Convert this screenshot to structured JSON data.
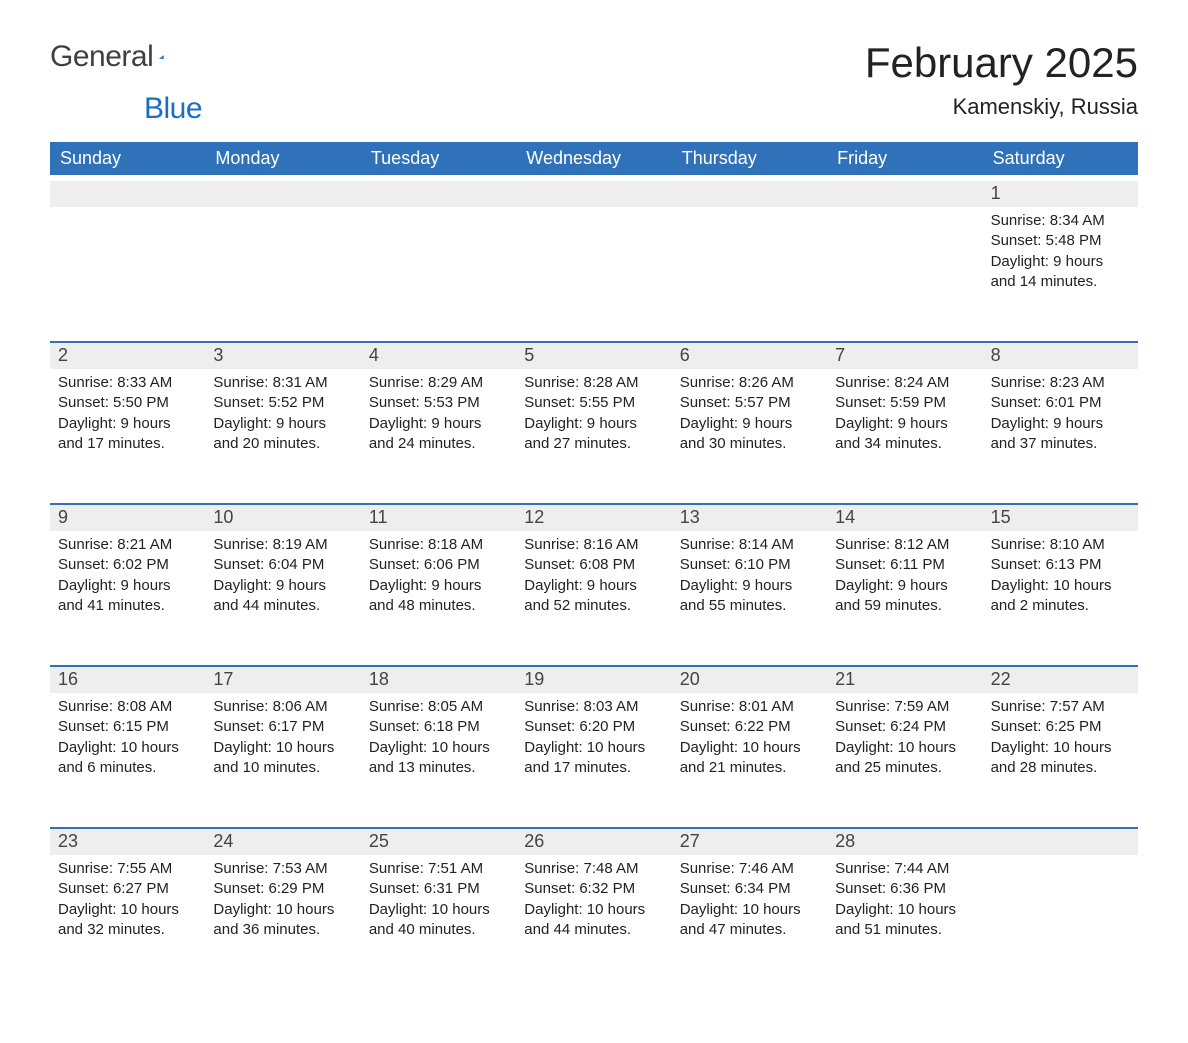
{
  "logo": {
    "word1": "General",
    "word2": "Blue",
    "sail_fill": "#1b6ec2"
  },
  "title": {
    "month_year": "February 2025",
    "location": "Kamenskiy, Russia"
  },
  "style": {
    "header_blue": "#2f72b9",
    "rule_blue": "#2f72b9",
    "row_grey": "#eeeeee",
    "background": "#ffffff",
    "weekday_text_color": "#ffffff",
    "body_text_color": "#222222",
    "daynum_text_color": "#444444",
    "month_title_fontsize": 42,
    "location_fontsize": 22,
    "weekday_fontsize": 18,
    "daynum_fontsize": 18,
    "body_fontsize": 15
  },
  "weekdays": [
    "Sunday",
    "Monday",
    "Tuesday",
    "Wednesday",
    "Thursday",
    "Friday",
    "Saturday"
  ],
  "weeks": [
    [
      {
        "day": "",
        "lines": []
      },
      {
        "day": "",
        "lines": []
      },
      {
        "day": "",
        "lines": []
      },
      {
        "day": "",
        "lines": []
      },
      {
        "day": "",
        "lines": []
      },
      {
        "day": "",
        "lines": []
      },
      {
        "day": "1",
        "lines": [
          "Sunrise: 8:34 AM",
          "Sunset: 5:48 PM",
          "Daylight: 9 hours",
          "and 14 minutes."
        ]
      }
    ],
    [
      {
        "day": "2",
        "lines": [
          "Sunrise: 8:33 AM",
          "Sunset: 5:50 PM",
          "Daylight: 9 hours",
          "and 17 minutes."
        ]
      },
      {
        "day": "3",
        "lines": [
          "Sunrise: 8:31 AM",
          "Sunset: 5:52 PM",
          "Daylight: 9 hours",
          "and 20 minutes."
        ]
      },
      {
        "day": "4",
        "lines": [
          "Sunrise: 8:29 AM",
          "Sunset: 5:53 PM",
          "Daylight: 9 hours",
          "and 24 minutes."
        ]
      },
      {
        "day": "5",
        "lines": [
          "Sunrise: 8:28 AM",
          "Sunset: 5:55 PM",
          "Daylight: 9 hours",
          "and 27 minutes."
        ]
      },
      {
        "day": "6",
        "lines": [
          "Sunrise: 8:26 AM",
          "Sunset: 5:57 PM",
          "Daylight: 9 hours",
          "and 30 minutes."
        ]
      },
      {
        "day": "7",
        "lines": [
          "Sunrise: 8:24 AM",
          "Sunset: 5:59 PM",
          "Daylight: 9 hours",
          "and 34 minutes."
        ]
      },
      {
        "day": "8",
        "lines": [
          "Sunrise: 8:23 AM",
          "Sunset: 6:01 PM",
          "Daylight: 9 hours",
          "and 37 minutes."
        ]
      }
    ],
    [
      {
        "day": "9",
        "lines": [
          "Sunrise: 8:21 AM",
          "Sunset: 6:02 PM",
          "Daylight: 9 hours",
          "and 41 minutes."
        ]
      },
      {
        "day": "10",
        "lines": [
          "Sunrise: 8:19 AM",
          "Sunset: 6:04 PM",
          "Daylight: 9 hours",
          "and 44 minutes."
        ]
      },
      {
        "day": "11",
        "lines": [
          "Sunrise: 8:18 AM",
          "Sunset: 6:06 PM",
          "Daylight: 9 hours",
          "and 48 minutes."
        ]
      },
      {
        "day": "12",
        "lines": [
          "Sunrise: 8:16 AM",
          "Sunset: 6:08 PM",
          "Daylight: 9 hours",
          "and 52 minutes."
        ]
      },
      {
        "day": "13",
        "lines": [
          "Sunrise: 8:14 AM",
          "Sunset: 6:10 PM",
          "Daylight: 9 hours",
          "and 55 minutes."
        ]
      },
      {
        "day": "14",
        "lines": [
          "Sunrise: 8:12 AM",
          "Sunset: 6:11 PM",
          "Daylight: 9 hours",
          "and 59 minutes."
        ]
      },
      {
        "day": "15",
        "lines": [
          "Sunrise: 8:10 AM",
          "Sunset: 6:13 PM",
          "Daylight: 10 hours",
          "and 2 minutes."
        ]
      }
    ],
    [
      {
        "day": "16",
        "lines": [
          "Sunrise: 8:08 AM",
          "Sunset: 6:15 PM",
          "Daylight: 10 hours",
          "and 6 minutes."
        ]
      },
      {
        "day": "17",
        "lines": [
          "Sunrise: 8:06 AM",
          "Sunset: 6:17 PM",
          "Daylight: 10 hours",
          "and 10 minutes."
        ]
      },
      {
        "day": "18",
        "lines": [
          "Sunrise: 8:05 AM",
          "Sunset: 6:18 PM",
          "Daylight: 10 hours",
          "and 13 minutes."
        ]
      },
      {
        "day": "19",
        "lines": [
          "Sunrise: 8:03 AM",
          "Sunset: 6:20 PM",
          "Daylight: 10 hours",
          "and 17 minutes."
        ]
      },
      {
        "day": "20",
        "lines": [
          "Sunrise: 8:01 AM",
          "Sunset: 6:22 PM",
          "Daylight: 10 hours",
          "and 21 minutes."
        ]
      },
      {
        "day": "21",
        "lines": [
          "Sunrise: 7:59 AM",
          "Sunset: 6:24 PM",
          "Daylight: 10 hours",
          "and 25 minutes."
        ]
      },
      {
        "day": "22",
        "lines": [
          "Sunrise: 7:57 AM",
          "Sunset: 6:25 PM",
          "Daylight: 10 hours",
          "and 28 minutes."
        ]
      }
    ],
    [
      {
        "day": "23",
        "lines": [
          "Sunrise: 7:55 AM",
          "Sunset: 6:27 PM",
          "Daylight: 10 hours",
          "and 32 minutes."
        ]
      },
      {
        "day": "24",
        "lines": [
          "Sunrise: 7:53 AM",
          "Sunset: 6:29 PM",
          "Daylight: 10 hours",
          "and 36 minutes."
        ]
      },
      {
        "day": "25",
        "lines": [
          "Sunrise: 7:51 AM",
          "Sunset: 6:31 PM",
          "Daylight: 10 hours",
          "and 40 minutes."
        ]
      },
      {
        "day": "26",
        "lines": [
          "Sunrise: 7:48 AM",
          "Sunset: 6:32 PM",
          "Daylight: 10 hours",
          "and 44 minutes."
        ]
      },
      {
        "day": "27",
        "lines": [
          "Sunrise: 7:46 AM",
          "Sunset: 6:34 PM",
          "Daylight: 10 hours",
          "and 47 minutes."
        ]
      },
      {
        "day": "28",
        "lines": [
          "Sunrise: 7:44 AM",
          "Sunset: 6:36 PM",
          "Daylight: 10 hours",
          "and 51 minutes."
        ]
      },
      {
        "day": "",
        "lines": []
      }
    ]
  ]
}
